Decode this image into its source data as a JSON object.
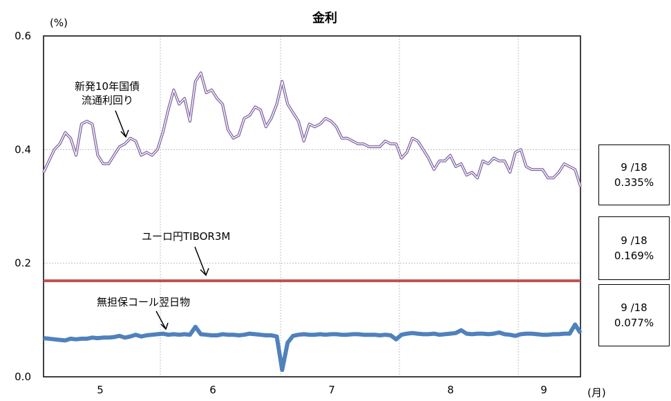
{
  "chart_data": {
    "type": "line",
    "title": "金利",
    "y_unit": "(%)",
    "x_unit": "(月)",
    "ylim": [
      0,
      0.6
    ],
    "y_ticks": [
      "0.0",
      "0.2",
      "0.4",
      "0.6"
    ],
    "x_month_labels": [
      "5",
      "6",
      "7",
      "8",
      "9"
    ],
    "grid": true,
    "series": [
      {
        "name": "新発10年国債\n流通利回り",
        "color": "#8064a2",
        "values": [
          0.36,
          0.38,
          0.4,
          0.41,
          0.43,
          0.42,
          0.39,
          0.445,
          0.45,
          0.445,
          0.39,
          0.375,
          0.375,
          0.39,
          0.405,
          0.41,
          0.42,
          0.415,
          0.39,
          0.395,
          0.39,
          0.4,
          0.43,
          0.47,
          0.505,
          0.48,
          0.49,
          0.45,
          0.52,
          0.535,
          0.5,
          0.505,
          0.49,
          0.48,
          0.435,
          0.42,
          0.425,
          0.455,
          0.46,
          0.475,
          0.47,
          0.44,
          0.455,
          0.48,
          0.52,
          0.48,
          0.465,
          0.45,
          0.415,
          0.445,
          0.44,
          0.445,
          0.455,
          0.45,
          0.44,
          0.42,
          0.42,
          0.415,
          0.41,
          0.41,
          0.405,
          0.405,
          0.405,
          0.415,
          0.41,
          0.41,
          0.385,
          0.395,
          0.42,
          0.415,
          0.4,
          0.385,
          0.365,
          0.38,
          0.38,
          0.39,
          0.37,
          0.375,
          0.355,
          0.36,
          0.35,
          0.38,
          0.375,
          0.385,
          0.38,
          0.38,
          0.36,
          0.395,
          0.4,
          0.37,
          0.365,
          0.365,
          0.365,
          0.35,
          0.35,
          0.36,
          0.375,
          0.37,
          0.365,
          0.335
        ]
      },
      {
        "name": "ユーロ円TIBOR3M",
        "color": "#c0504d",
        "values": [
          0.169,
          0.169,
          0.169,
          0.169,
          0.169,
          0.169,
          0.169,
          0.169,
          0.169,
          0.169,
          0.169,
          0.169,
          0.169,
          0.169,
          0.169,
          0.169,
          0.169,
          0.169,
          0.169,
          0.169,
          0.169,
          0.169,
          0.169,
          0.169,
          0.169,
          0.169,
          0.169,
          0.169,
          0.169,
          0.169,
          0.169,
          0.169,
          0.169,
          0.169,
          0.169,
          0.169,
          0.169,
          0.169,
          0.169,
          0.169,
          0.169,
          0.169,
          0.169,
          0.169,
          0.169,
          0.169,
          0.169,
          0.169,
          0.169,
          0.169,
          0.169,
          0.169,
          0.169,
          0.169,
          0.169,
          0.169,
          0.169,
          0.169,
          0.169,
          0.169,
          0.169,
          0.169,
          0.169,
          0.169,
          0.169,
          0.169,
          0.169,
          0.169,
          0.169,
          0.169,
          0.169,
          0.169,
          0.169,
          0.169,
          0.169,
          0.169,
          0.169,
          0.169,
          0.169,
          0.169,
          0.169,
          0.169,
          0.169,
          0.169,
          0.169,
          0.169,
          0.169,
          0.169,
          0.169,
          0.169,
          0.169,
          0.169,
          0.169,
          0.169,
          0.169,
          0.169,
          0.169,
          0.169,
          0.169,
          0.169
        ]
      },
      {
        "name": "無担保コール翌日物",
        "color": "#4f81bd",
        "values": [
          0.068,
          0.067,
          0.066,
          0.065,
          0.064,
          0.067,
          0.066,
          0.067,
          0.067,
          0.069,
          0.068,
          0.069,
          0.069,
          0.07,
          0.072,
          0.069,
          0.071,
          0.074,
          0.071,
          0.073,
          0.074,
          0.075,
          0.076,
          0.074,
          0.075,
          0.074,
          0.075,
          0.074,
          0.088,
          0.075,
          0.074,
          0.073,
          0.073,
          0.075,
          0.074,
          0.074,
          0.073,
          0.074,
          0.076,
          0.075,
          0.074,
          0.073,
          0.073,
          0.071,
          0.012,
          0.06,
          0.072,
          0.074,
          0.075,
          0.074,
          0.074,
          0.075,
          0.074,
          0.075,
          0.075,
          0.074,
          0.074,
          0.075,
          0.075,
          0.074,
          0.074,
          0.074,
          0.073,
          0.074,
          0.073,
          0.066,
          0.074,
          0.076,
          0.077,
          0.076,
          0.075,
          0.075,
          0.076,
          0.074,
          0.075,
          0.076,
          0.077,
          0.082,
          0.076,
          0.075,
          0.076,
          0.076,
          0.075,
          0.076,
          0.078,
          0.075,
          0.074,
          0.072,
          0.075,
          0.076,
          0.076,
          0.075,
          0.074,
          0.074,
          0.075,
          0.075,
          0.076,
          0.076,
          0.092,
          0.077
        ]
      }
    ],
    "annotations": [
      {
        "text": "新発10年国債",
        "text2": "流通利回り"
      },
      {
        "text": "ユーロ円TIBOR3M"
      },
      {
        "text": "無担保コール翌日物"
      }
    ],
    "value_boxes": [
      {
        "date": "9 /18",
        "value": "0.335%"
      },
      {
        "date": "9 /18",
        "value": "0.169%"
      },
      {
        "date": "9 /18",
        "value": "0.077%"
      }
    ]
  }
}
